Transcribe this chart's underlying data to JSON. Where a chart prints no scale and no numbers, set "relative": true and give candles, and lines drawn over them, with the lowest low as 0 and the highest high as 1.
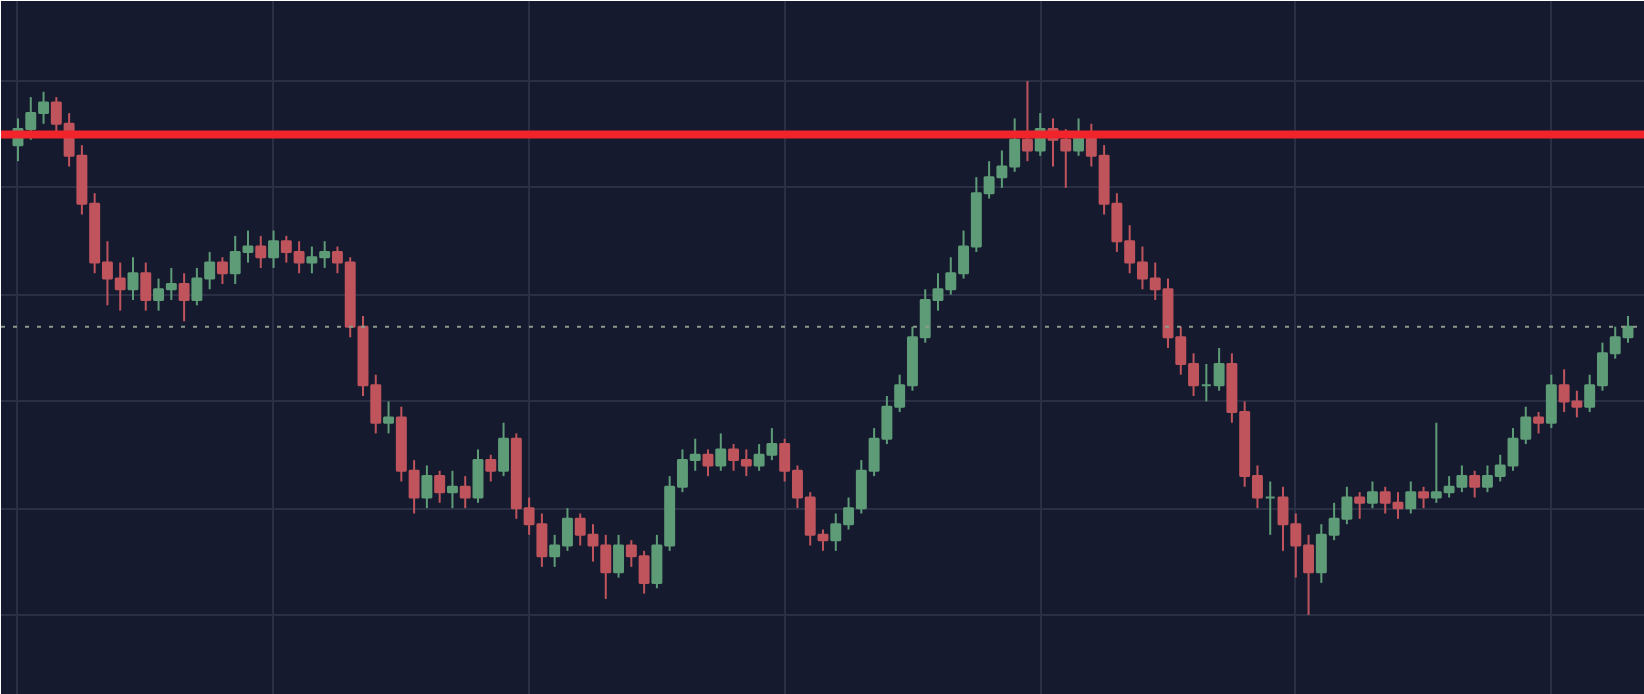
{
  "chart_data": {
    "type": "candlestick",
    "relative": true,
    "grid": true,
    "colors": [
      "#5e9c78",
      "#5e9c78",
      "#5e9c78",
      "#c0545c",
      "#c0545c",
      "#c0545c",
      "#c0545c",
      "#c0545c",
      "#c0545c",
      "#5e9c78",
      "#c0545c",
      "#5e9c78",
      "#5e9c78",
      "#c0545c",
      "#5e9c78",
      "#5e9c78",
      "#c0545c",
      "#5e9c78",
      "#5e9c78",
      "#c0545c",
      "#5e9c78",
      "#c0545c",
      "#c0545c",
      "#5e9c78",
      "#5e9c78",
      "#c0545c",
      "#c0545c",
      "#c0545c",
      "#c0545c",
      "#5e9c78",
      "#c0545c",
      "#c0545c",
      "#5e9c78",
      "#c0545c",
      "#5e9c78",
      "#c0545c",
      "#5e9c78",
      "#c0545c",
      "#5e9c78",
      "#c0545c",
      "#c0545c",
      "#c0545c",
      "#5e9c78",
      "#5e9c78",
      "#c0545c",
      "#c0545c",
      "#c0545c",
      "#5e9c78",
      "#c0545c",
      "#c0545c",
      "#5e9c78",
      "#5e9c78",
      "#5e9c78",
      "#5e9c78",
      "#c0545c",
      "#5e9c78",
      "#c0545c",
      "#c0545c",
      "#5e9c78",
      "#5e9c78",
      "#c0545c",
      "#c0545c",
      "#c0545c",
      "#c0545c",
      "#5e9c78",
      "#5e9c78",
      "#5e9c78",
      "#5e9c78",
      "#5e9c78",
      "#5e9c78",
      "#5e9c78",
      "#5e9c78",
      "#5e9c78",
      "#5e9c78",
      "#5e9c78",
      "#5e9c78",
      "#5e9c78",
      "#5e9c78",
      "#5e9c78",
      "#c0545c",
      "#5e9c78",
      "#c0545c",
      "#c0545c",
      "#5e9c78",
      "#c0545c",
      "#c0545c",
      "#c0545c",
      "#c0545c",
      "#c0545c",
      "#c0545c",
      "#c0545c",
      "#c0545c",
      "#c0545c",
      "#5e9c78",
      "#5e9c78",
      "#c0545c",
      "#c0545c",
      "#c0545c",
      "#5e9c78",
      "#c0545c",
      "#c0545c",
      "#c0545c",
      "#5e9c78",
      "#5e9c78",
      "#5e9c78",
      "#c0545c",
      "#5e9c78",
      "#c0545c",
      "#c0545c",
      "#5e9c78",
      "#c0545c",
      "#5e9c78",
      "#5e9c78",
      "#5e9c78",
      "#c0545c",
      "#5e9c78",
      "#5e9c78",
      "#5e9c78",
      "#5e9c78",
      "#c0545c",
      "#5e9c78",
      "#c0545c",
      "#c0545c",
      "#5e9c78",
      "#5e9c78",
      "#5e9c78",
      "#5e9c78"
    ],
    "categories": [
      null,
      null,
      null,
      null,
      null,
      null,
      null,
      null,
      null,
      null,
      null,
      null,
      null,
      null,
      null,
      null,
      null,
      null,
      null,
      null,
      null,
      null,
      null,
      null,
      null,
      null,
      null,
      null,
      null,
      null,
      null,
      null,
      null,
      null,
      null,
      null,
      null,
      null,
      null,
      null,
      null,
      null,
      null,
      null,
      null,
      null,
      null,
      null,
      null,
      null,
      null,
      null,
      null,
      null,
      null,
      null,
      null,
      null,
      null,
      null,
      null,
      null,
      null,
      null,
      null,
      null,
      null,
      null,
      null,
      null,
      null,
      null,
      null,
      null,
      null,
      null,
      null,
      null,
      null,
      null,
      null,
      null,
      null,
      null,
      null,
      null,
      null,
      null,
      null,
      null,
      null,
      null,
      null,
      null,
      null,
      null,
      null,
      null,
      null,
      null,
      null,
      null,
      null,
      null,
      null,
      null,
      null,
      null,
      null,
      null,
      null,
      null,
      null,
      null,
      null,
      null,
      null,
      null,
      null,
      null,
      null,
      null,
      null,
      null,
      null,
      null,
      null
    ],
    "ohlc": [
      [
        0.88,
        0.93,
        0.85,
        0.91
      ],
      [
        0.91,
        0.97,
        0.89,
        0.94
      ],
      [
        0.94,
        0.98,
        0.92,
        0.96
      ],
      [
        0.96,
        0.97,
        0.9,
        0.92
      ],
      [
        0.92,
        0.94,
        0.84,
        0.86
      ],
      [
        0.86,
        0.88,
        0.75,
        0.77
      ],
      [
        0.77,
        0.79,
        0.64,
        0.66
      ],
      [
        0.66,
        0.7,
        0.58,
        0.63
      ],
      [
        0.63,
        0.66,
        0.57,
        0.61
      ],
      [
        0.61,
        0.67,
        0.59,
        0.64
      ],
      [
        0.64,
        0.66,
        0.57,
        0.59
      ],
      [
        0.59,
        0.63,
        0.57,
        0.61
      ],
      [
        0.61,
        0.65,
        0.59,
        0.62
      ],
      [
        0.62,
        0.64,
        0.55,
        0.59
      ],
      [
        0.59,
        0.65,
        0.58,
        0.63
      ],
      [
        0.63,
        0.68,
        0.61,
        0.66
      ],
      [
        0.66,
        0.67,
        0.62,
        0.64
      ],
      [
        0.64,
        0.71,
        0.62,
        0.68
      ],
      [
        0.68,
        0.72,
        0.66,
        0.69
      ],
      [
        0.69,
        0.71,
        0.65,
        0.67
      ],
      [
        0.67,
        0.72,
        0.65,
        0.7
      ],
      [
        0.7,
        0.71,
        0.66,
        0.68
      ],
      [
        0.68,
        0.7,
        0.64,
        0.66
      ],
      [
        0.66,
        0.69,
        0.64,
        0.67
      ],
      [
        0.67,
        0.7,
        0.65,
        0.68
      ],
      [
        0.68,
        0.69,
        0.64,
        0.66
      ],
      [
        0.66,
        0.67,
        0.52,
        0.54
      ],
      [
        0.54,
        0.56,
        0.41,
        0.43
      ],
      [
        0.43,
        0.45,
        0.34,
        0.36
      ],
      [
        0.36,
        0.4,
        0.34,
        0.37
      ],
      [
        0.37,
        0.39,
        0.25,
        0.27
      ],
      [
        0.27,
        0.29,
        0.19,
        0.22
      ],
      [
        0.22,
        0.28,
        0.2,
        0.26
      ],
      [
        0.26,
        0.27,
        0.21,
        0.23
      ],
      [
        0.23,
        0.27,
        0.2,
        0.24
      ],
      [
        0.24,
        0.26,
        0.2,
        0.22
      ],
      [
        0.22,
        0.31,
        0.21,
        0.29
      ],
      [
        0.29,
        0.3,
        0.25,
        0.27
      ],
      [
        0.27,
        0.36,
        0.26,
        0.33
      ],
      [
        0.33,
        0.34,
        0.18,
        0.2
      ],
      [
        0.2,
        0.22,
        0.15,
        0.17
      ],
      [
        0.17,
        0.19,
        0.09,
        0.11
      ],
      [
        0.11,
        0.15,
        0.09,
        0.13
      ],
      [
        0.13,
        0.2,
        0.12,
        0.18
      ],
      [
        0.18,
        0.19,
        0.13,
        0.15
      ],
      [
        0.15,
        0.17,
        0.1,
        0.13
      ],
      [
        0.13,
        0.15,
        0.03,
        0.08
      ],
      [
        0.08,
        0.15,
        0.07,
        0.13
      ],
      [
        0.13,
        0.14,
        0.09,
        0.11
      ],
      [
        0.11,
        0.12,
        0.04,
        0.06
      ],
      [
        0.06,
        0.15,
        0.05,
        0.13
      ],
      [
        0.13,
        0.26,
        0.12,
        0.24
      ],
      [
        0.24,
        0.31,
        0.23,
        0.29
      ],
      [
        0.29,
        0.33,
        0.27,
        0.3
      ],
      [
        0.3,
        0.31,
        0.26,
        0.28
      ],
      [
        0.28,
        0.34,
        0.27,
        0.31
      ],
      [
        0.31,
        0.32,
        0.27,
        0.29
      ],
      [
        0.29,
        0.31,
        0.26,
        0.28
      ],
      [
        0.28,
        0.32,
        0.27,
        0.3
      ],
      [
        0.3,
        0.35,
        0.29,
        0.32
      ],
      [
        0.32,
        0.33,
        0.25,
        0.27
      ],
      [
        0.27,
        0.28,
        0.2,
        0.22
      ],
      [
        0.22,
        0.23,
        0.13,
        0.15
      ],
      [
        0.15,
        0.16,
        0.12,
        0.14
      ],
      [
        0.14,
        0.19,
        0.12,
        0.17
      ],
      [
        0.17,
        0.22,
        0.16,
        0.2
      ],
      [
        0.2,
        0.29,
        0.19,
        0.27
      ],
      [
        0.27,
        0.35,
        0.26,
        0.33
      ],
      [
        0.33,
        0.41,
        0.32,
        0.39
      ],
      [
        0.39,
        0.45,
        0.38,
        0.43
      ],
      [
        0.43,
        0.54,
        0.42,
        0.52
      ],
      [
        0.52,
        0.61,
        0.51,
        0.59
      ],
      [
        0.59,
        0.64,
        0.57,
        0.61
      ],
      [
        0.61,
        0.67,
        0.6,
        0.64
      ],
      [
        0.64,
        0.72,
        0.63,
        0.69
      ],
      [
        0.69,
        0.82,
        0.68,
        0.79
      ],
      [
        0.79,
        0.85,
        0.78,
        0.82
      ],
      [
        0.82,
        0.87,
        0.8,
        0.84
      ],
      [
        0.84,
        0.93,
        0.83,
        0.89
      ],
      [
        0.89,
        1.0,
        0.85,
        0.87
      ],
      [
        0.87,
        0.94,
        0.86,
        0.91
      ],
      [
        0.91,
        0.93,
        0.84,
        0.89
      ],
      [
        0.89,
        0.91,
        0.8,
        0.87
      ],
      [
        0.87,
        0.93,
        0.86,
        0.9
      ],
      [
        0.9,
        0.92,
        0.84,
        0.86
      ],
      [
        0.86,
        0.88,
        0.75,
        0.77
      ],
      [
        0.77,
        0.79,
        0.68,
        0.7
      ],
      [
        0.7,
        0.73,
        0.64,
        0.66
      ],
      [
        0.66,
        0.69,
        0.61,
        0.63
      ],
      [
        0.63,
        0.66,
        0.59,
        0.61
      ],
      [
        0.61,
        0.63,
        0.5,
        0.52
      ],
      [
        0.52,
        0.54,
        0.45,
        0.47
      ],
      [
        0.47,
        0.49,
        0.41,
        0.43
      ],
      [
        0.43,
        0.47,
        0.4,
        0.43
      ],
      [
        0.43,
        0.5,
        0.42,
        0.47
      ],
      [
        0.47,
        0.49,
        0.36,
        0.38
      ],
      [
        0.38,
        0.4,
        0.24,
        0.26
      ],
      [
        0.26,
        0.28,
        0.2,
        0.22
      ],
      [
        0.22,
        0.25,
        0.15,
        0.22
      ],
      [
        0.22,
        0.24,
        0.12,
        0.17
      ],
      [
        0.17,
        0.19,
        0.07,
        0.13
      ],
      [
        0.13,
        0.15,
        0.0,
        0.08
      ],
      [
        0.08,
        0.17,
        0.06,
        0.15
      ],
      [
        0.15,
        0.21,
        0.14,
        0.18
      ],
      [
        0.18,
        0.24,
        0.17,
        0.22
      ],
      [
        0.22,
        0.23,
        0.18,
        0.21
      ],
      [
        0.21,
        0.25,
        0.2,
        0.23
      ],
      [
        0.23,
        0.24,
        0.19,
        0.21
      ],
      [
        0.21,
        0.23,
        0.18,
        0.2
      ],
      [
        0.2,
        0.25,
        0.19,
        0.23
      ],
      [
        0.23,
        0.24,
        0.2,
        0.22
      ],
      [
        0.22,
        0.36,
        0.21,
        0.23
      ],
      [
        0.23,
        0.26,
        0.22,
        0.24
      ],
      [
        0.24,
        0.28,
        0.23,
        0.26
      ],
      [
        0.26,
        0.27,
        0.22,
        0.24
      ],
      [
        0.24,
        0.28,
        0.23,
        0.26
      ],
      [
        0.26,
        0.3,
        0.25,
        0.28
      ],
      [
        0.28,
        0.35,
        0.27,
        0.33
      ],
      [
        0.33,
        0.39,
        0.32,
        0.37
      ],
      [
        0.37,
        0.38,
        0.34,
        0.36
      ],
      [
        0.36,
        0.45,
        0.35,
        0.43
      ],
      [
        0.43,
        0.46,
        0.38,
        0.4
      ],
      [
        0.4,
        0.42,
        0.37,
        0.39
      ],
      [
        0.39,
        0.45,
        0.38,
        0.43
      ],
      [
        0.43,
        0.51,
        0.42,
        0.49
      ],
      [
        0.49,
        0.54,
        0.48,
        0.52
      ],
      [
        0.52,
        0.56,
        0.51,
        0.54
      ]
    ],
    "ref_lines": [
      {
        "axis": "y",
        "value": 0.9,
        "color": "#f0242a",
        "line_style": "solid"
      },
      {
        "axis": "y",
        "value": 0.54,
        "color": "#8c9a8c",
        "line_style": "dotted"
      }
    ]
  }
}
